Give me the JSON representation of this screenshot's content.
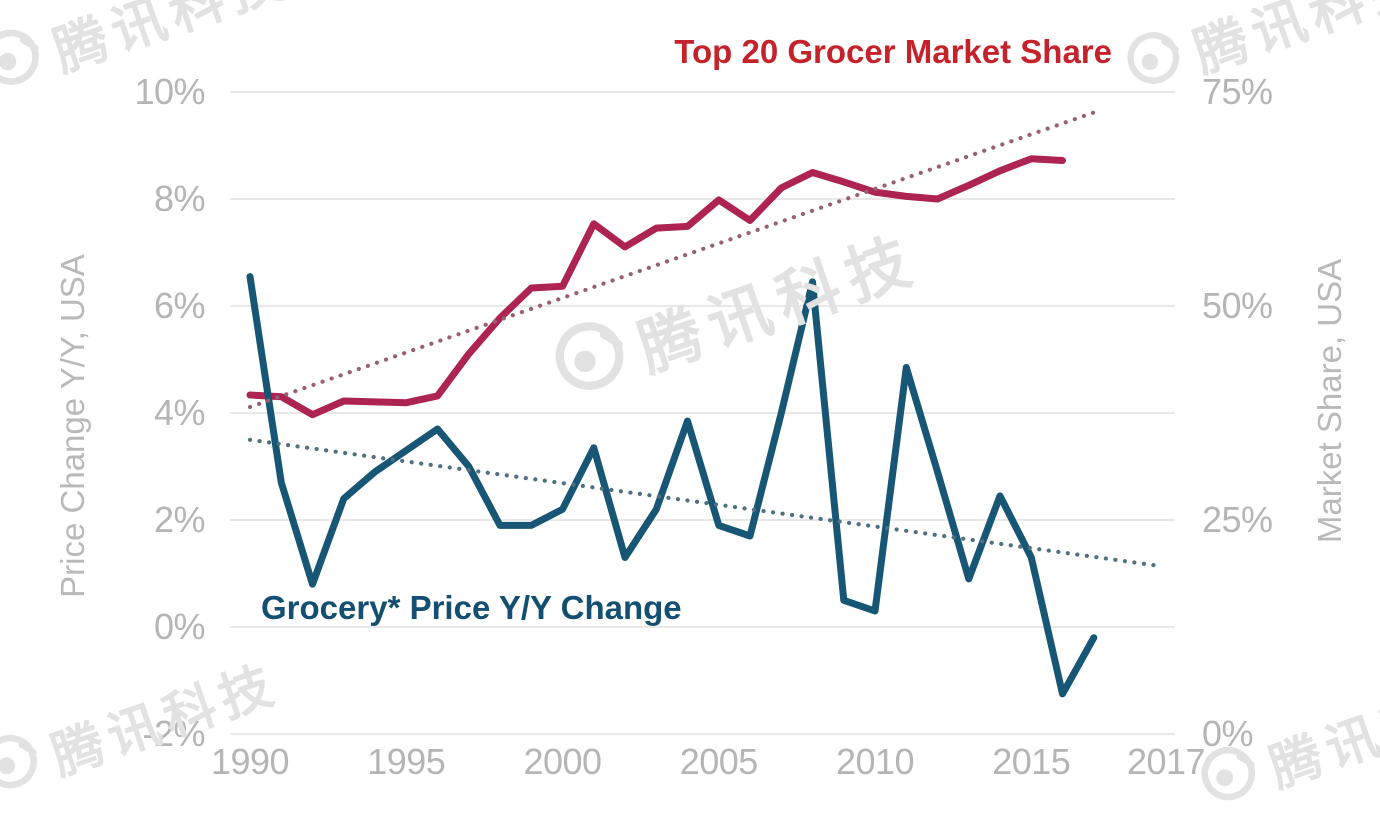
{
  "watermark": {
    "text": "腾讯科技",
    "logo": "tencent-eye-logo"
  },
  "chart_data": {
    "type": "line",
    "title": "Top 20 Grocer Market Share",
    "grid": true,
    "legend": "inline-colored-labels",
    "x_axis": {
      "tick_labels": [
        "1990",
        "1995",
        "2000",
        "2005",
        "2010",
        "2015",
        "2017"
      ],
      "tick_years": [
        1990,
        1995,
        2000,
        2005,
        2010,
        2015,
        2017
      ],
      "range": [
        1990,
        2017
      ]
    },
    "left_axis": {
      "title": "Price Change Y/Y, USA",
      "tick_labels": [
        "10%",
        "8%",
        "6%",
        "4%",
        "2%",
        "0%",
        "-2%"
      ],
      "ticks": [
        10,
        8,
        6,
        4,
        2,
        0,
        -2
      ],
      "range": [
        -2,
        10
      ]
    },
    "right_axis": {
      "title": "Market Share, USA",
      "tick_labels": [
        "75%",
        "50%",
        "25%",
        "0%"
      ],
      "ticks": [
        75,
        50,
        25,
        0
      ],
      "range": [
        0,
        75
      ]
    },
    "series": [
      {
        "name": "Top 20 Grocer Market Share",
        "axis": "right",
        "style": "solid",
        "color": "#ad2351",
        "unit": "% market share",
        "years": [
          1990,
          1991,
          1992,
          1993,
          1994,
          1995,
          1996,
          1997,
          1998,
          1999,
          2000,
          2001,
          2002,
          2003,
          2004,
          2005,
          2006,
          2007,
          2008,
          2009,
          2010,
          2011,
          2012,
          2013,
          2014,
          2015,
          2016
        ],
        "values": [
          39.6,
          39.4,
          37.3,
          38.9,
          38.8,
          38.7,
          39.5,
          44.4,
          48.6,
          52.1,
          52.3,
          59.6,
          56.9,
          59.1,
          59.3,
          62.4,
          60.0,
          63.8,
          65.6,
          64.5,
          63.3,
          62.8,
          62.5,
          64.1,
          65.8,
          67.2,
          67.0
        ]
      },
      {
        "name": "Grocery* Price Y/Y Change",
        "axis": "left",
        "style": "solid",
        "color": "#175674",
        "unit": "% y/y price change",
        "years": [
          1990,
          1991,
          1992,
          1993,
          1994,
          1995,
          1996,
          1997,
          1998,
          1999,
          2000,
          2001,
          2002,
          2003,
          2004,
          2005,
          2006,
          2007,
          2008,
          2009,
          2010,
          2011,
          2012,
          2013,
          2014,
          2015,
          2016,
          2017
        ],
        "values": [
          6.55,
          2.7,
          0.8,
          2.4,
          2.9,
          3.3,
          3.7,
          3.0,
          1.9,
          1.9,
          2.2,
          3.35,
          1.3,
          2.2,
          3.85,
          1.9,
          1.7,
          4.0,
          6.45,
          0.5,
          0.3,
          4.85,
          2.9,
          0.9,
          2.45,
          1.3,
          -1.25,
          -0.2
        ]
      },
      {
        "name": "Top 20 Grocer Market Share linear trend",
        "axis": "right",
        "style": "dotted",
        "color": "#99616e",
        "years": [
          1990,
          2017
        ],
        "values": [
          38.2,
          72.6
        ]
      },
      {
        "name": "Grocery Price Y/Y Change linear trend",
        "axis": "left",
        "style": "dotted",
        "color": "#51707f",
        "years": [
          1990,
          2019
        ],
        "values": [
          3.5,
          1.15
        ]
      }
    ]
  }
}
